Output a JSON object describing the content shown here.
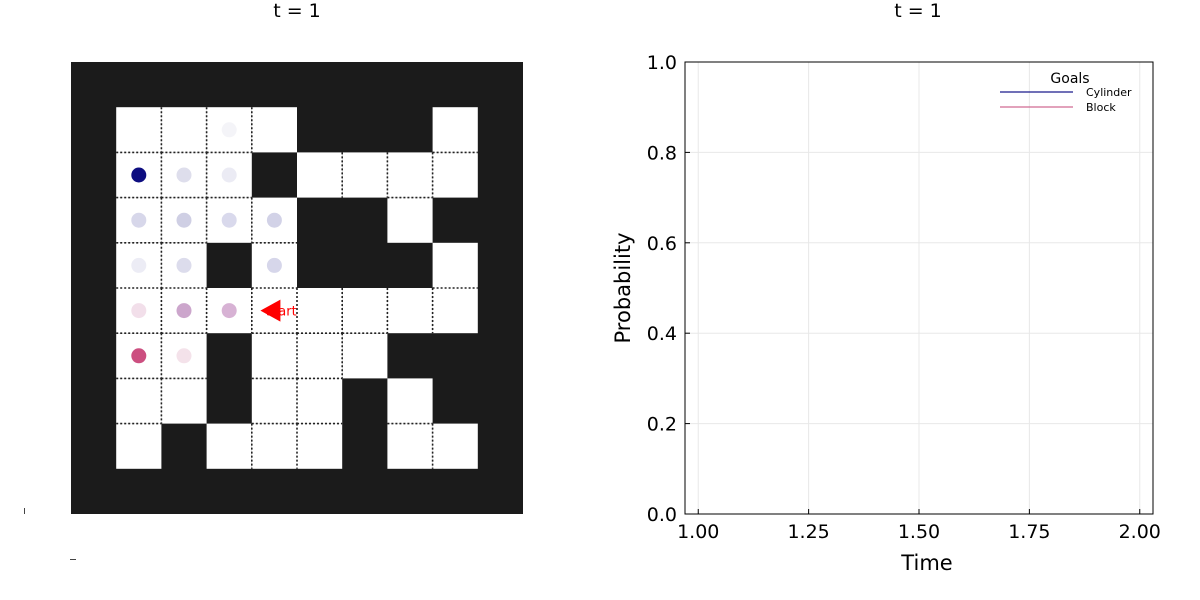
{
  "left_panel": {
    "title": "t = 1",
    "agent_label": "start",
    "cell_colors": {
      "wall": "#1b1b1b",
      "floor": "#ffffff",
      "agent": "#ff0000"
    },
    "wall_map": [
      "1111111111",
      "1000011101",
      "1000100001",
      "1000011011",
      "1001011101",
      "1000000001",
      "1001000111",
      "1001001011",
      "1010001001",
      "1111111111"
    ],
    "agent_cell": {
      "col": 4,
      "row": 5,
      "facing": "left"
    },
    "goal_dots": [
      {
        "col": 3,
        "row": 1,
        "color": "#e9e9f2",
        "alpha": 0.5
      },
      {
        "col": 1,
        "row": 2,
        "color": "#0d0d80",
        "alpha": 1.0
      },
      {
        "col": 2,
        "row": 2,
        "color": "#dadaea",
        "alpha": 0.9
      },
      {
        "col": 3,
        "row": 2,
        "color": "#e6e6f1",
        "alpha": 0.8
      },
      {
        "col": 1,
        "row": 3,
        "color": "#d7d7ea",
        "alpha": 1.0
      },
      {
        "col": 2,
        "row": 3,
        "color": "#cfcfe4",
        "alpha": 1.0
      },
      {
        "col": 3,
        "row": 3,
        "color": "#d9d9ec",
        "alpha": 1.0
      },
      {
        "col": 4,
        "row": 3,
        "color": "#d2d2e7",
        "alpha": 1.0
      },
      {
        "col": 1,
        "row": 4,
        "color": "#ececf5",
        "alpha": 1.0
      },
      {
        "col": 2,
        "row": 4,
        "color": "#dcdcec",
        "alpha": 1.0
      },
      {
        "col": 4,
        "row": 4,
        "color": "#d6d6ea",
        "alpha": 1.0
      },
      {
        "col": 1,
        "row": 5,
        "color": "#f2dfea",
        "alpha": 1.0
      },
      {
        "col": 2,
        "row": 5,
        "color": "#cca6cc",
        "alpha": 1.0
      },
      {
        "col": 3,
        "row": 5,
        "color": "#d7b2d4",
        "alpha": 1.0
      },
      {
        "col": 1,
        "row": 6,
        "color": "#cc4f80",
        "alpha": 1.0
      },
      {
        "col": 2,
        "row": 6,
        "color": "#f4e2ea",
        "alpha": 1.0
      }
    ]
  },
  "chart_data": {
    "type": "line",
    "title": "t = 1",
    "xlabel": "Time",
    "ylabel": "Probability",
    "xlim": [
      0.97,
      2.03
    ],
    "ylim": [
      0,
      1
    ],
    "x_ticks": [
      1.0,
      1.25,
      1.5,
      1.75,
      2.0
    ],
    "x_tick_labels": [
      "1.00",
      "1.25",
      "1.50",
      "1.75",
      "2.00"
    ],
    "y_ticks": [
      0,
      0.2,
      0.4,
      0.6,
      0.8,
      1.0
    ],
    "y_tick_labels": [
      "0.0",
      "0.2",
      "0.4",
      "0.6",
      "0.8",
      "1.0"
    ],
    "grid": true,
    "legend": {
      "title": "Goals",
      "placement": "top-right",
      "entries": [
        {
          "name": "Cylinder",
          "color": "#1a1a8c"
        },
        {
          "name": "Block",
          "color": "#d06a92"
        }
      ]
    },
    "series": [
      {
        "name": "Cylinder",
        "color": "#1a1a8c",
        "x": [],
        "values": []
      },
      {
        "name": "Block",
        "color": "#d06a92",
        "x": [],
        "values": []
      }
    ]
  }
}
